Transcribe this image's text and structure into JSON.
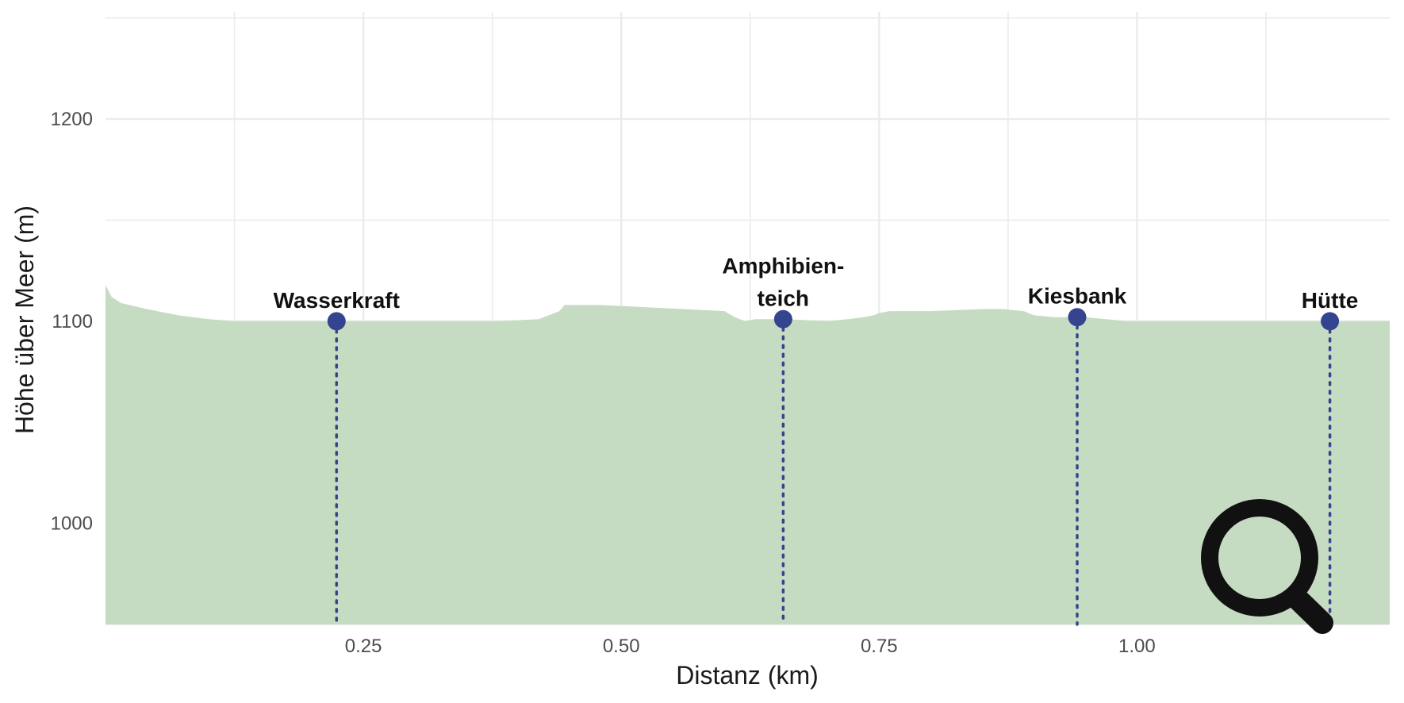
{
  "chart_data": {
    "type": "area",
    "xlabel": "Distanz (km)",
    "ylabel": "Höhe über Meer (m)",
    "xlim": [
      0,
      1.245
    ],
    "ylim": [
      950,
      1253
    ],
    "x_ticks": [
      0.25,
      0.5,
      0.75,
      1.0
    ],
    "x_tick_labels": [
      "0.25",
      "0.50",
      "0.75",
      "1.00"
    ],
    "y_ticks": [
      1000,
      1100,
      1200
    ],
    "y_tick_labels": [
      "1000",
      "1100",
      "1200"
    ],
    "grid": true,
    "profile": {
      "x": [
        0,
        0.006,
        0.015,
        0.04,
        0.07,
        0.1,
        0.125,
        0.15,
        0.2,
        0.3,
        0.38,
        0.42,
        0.425,
        0.44,
        0.445,
        0.48,
        0.52,
        0.56,
        0.6,
        0.61,
        0.62,
        0.63,
        0.66,
        0.7,
        0.72,
        0.735,
        0.745,
        0.75,
        0.76,
        0.8,
        0.85,
        0.87,
        0.89,
        0.9,
        0.92,
        0.95,
        0.97,
        0.99,
        1.05,
        1.2,
        1.245
      ],
      "y": [
        1118,
        1112,
        1109,
        1106,
        1103,
        1101,
        1100,
        1100,
        1100,
        1100,
        1100,
        1101,
        1102,
        1105,
        1108,
        1108,
        1107,
        1106,
        1105,
        1102,
        1100,
        1101,
        1101,
        1100,
        1101,
        1102,
        1103,
        1104,
        1105,
        1105,
        1106,
        1106,
        1105,
        1103,
        1102,
        1102,
        1101,
        1100,
        1100,
        1100,
        1100
      ]
    },
    "fill_color": "#c6dcc2",
    "points": [
      {
        "name": "Wasserkraft",
        "x": 0.224,
        "y": 1100
      },
      {
        "name": "Amphibien-\nteich",
        "x": 0.657,
        "y": 1101
      },
      {
        "name": "Kiesbank",
        "x": 0.942,
        "y": 1102
      },
      {
        "name": "Hütte",
        "x": 1.187,
        "y": 1100
      }
    ],
    "point_color": "#35448f",
    "grid_color": "#ebebeb"
  },
  "overlay": {
    "icon": "magnifier-icon",
    "color": "#111111"
  }
}
